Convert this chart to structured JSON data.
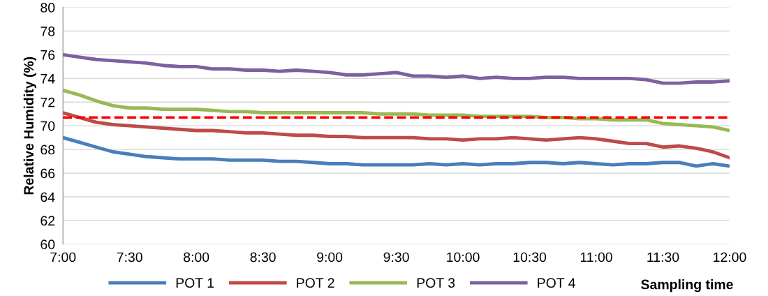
{
  "chart_data": {
    "type": "line",
    "ylabel": "Relative Humidity (%)",
    "xlabel": "Sampling time",
    "x": [
      7.0,
      7.125,
      7.25,
      7.375,
      7.5,
      7.625,
      7.75,
      7.875,
      8.0,
      8.125,
      8.25,
      8.375,
      8.5,
      8.625,
      8.75,
      8.875,
      9.0,
      9.125,
      9.25,
      9.375,
      9.5,
      9.625,
      9.75,
      9.875,
      10.0,
      10.125,
      10.25,
      10.375,
      10.5,
      10.625,
      10.75,
      10.875,
      11.0,
      11.125,
      11.25,
      11.375,
      11.5,
      11.625,
      11.75,
      11.875,
      12.0
    ],
    "series": [
      {
        "name": "POT 1",
        "color": "#4a7ebb",
        "values": [
          69.0,
          68.6,
          68.2,
          67.8,
          67.6,
          67.4,
          67.3,
          67.2,
          67.2,
          67.2,
          67.1,
          67.1,
          67.1,
          67.0,
          67.0,
          66.9,
          66.8,
          66.8,
          66.7,
          66.7,
          66.7,
          66.7,
          66.8,
          66.7,
          66.8,
          66.7,
          66.8,
          66.8,
          66.9,
          66.9,
          66.8,
          66.9,
          66.8,
          66.7,
          66.8,
          66.8,
          66.9,
          66.9,
          66.6,
          66.8,
          66.6
        ]
      },
      {
        "name": "POT 2",
        "color": "#be4b48",
        "values": [
          71.1,
          70.7,
          70.3,
          70.1,
          70.0,
          69.9,
          69.8,
          69.7,
          69.6,
          69.6,
          69.5,
          69.4,
          69.4,
          69.3,
          69.2,
          69.2,
          69.1,
          69.1,
          69.0,
          69.0,
          69.0,
          69.0,
          68.9,
          68.9,
          68.8,
          68.9,
          68.9,
          69.0,
          68.9,
          68.8,
          68.9,
          69.0,
          68.9,
          68.7,
          68.5,
          68.5,
          68.2,
          68.3,
          68.1,
          67.8,
          67.3
        ]
      },
      {
        "name": "POT 3",
        "color": "#98b954",
        "values": [
          73.0,
          72.6,
          72.1,
          71.7,
          71.5,
          71.5,
          71.4,
          71.4,
          71.4,
          71.3,
          71.2,
          71.2,
          71.1,
          71.1,
          71.1,
          71.1,
          71.1,
          71.1,
          71.1,
          71.0,
          71.0,
          71.0,
          70.9,
          70.9,
          70.9,
          70.8,
          70.8,
          70.8,
          70.8,
          70.7,
          70.7,
          70.6,
          70.6,
          70.5,
          70.5,
          70.5,
          70.2,
          70.1,
          70.0,
          69.9,
          69.6
        ]
      },
      {
        "name": "POT 4",
        "color": "#7d60a0",
        "values": [
          76.0,
          75.8,
          75.6,
          75.5,
          75.4,
          75.3,
          75.1,
          75.0,
          75.0,
          74.8,
          74.8,
          74.7,
          74.7,
          74.6,
          74.7,
          74.6,
          74.5,
          74.3,
          74.3,
          74.4,
          74.5,
          74.2,
          74.2,
          74.1,
          74.2,
          74.0,
          74.1,
          74.0,
          74.0,
          74.1,
          74.1,
          74.0,
          74.0,
          74.0,
          74.0,
          73.9,
          73.6,
          73.6,
          73.7,
          73.7,
          73.8
        ]
      }
    ],
    "xlim": [
      7.0,
      12.0
    ],
    "xticks": [
      {
        "value": 7.0,
        "label": "7:00"
      },
      {
        "value": 7.5,
        "label": "7:30"
      },
      {
        "value": 8.0,
        "label": "8:00"
      },
      {
        "value": 8.5,
        "label": "8:30"
      },
      {
        "value": 9.0,
        "label": "9:00"
      },
      {
        "value": 9.5,
        "label": "9:30"
      },
      {
        "value": 10.0,
        "label": "10:00"
      },
      {
        "value": 10.5,
        "label": "10:30"
      },
      {
        "value": 11.0,
        "label": "11:00"
      },
      {
        "value": 11.5,
        "label": "11:30"
      },
      {
        "value": 12.0,
        "label": "12:00"
      }
    ],
    "ylim": [
      60,
      80
    ],
    "yticks": [
      60,
      62,
      64,
      66,
      68,
      70,
      72,
      74,
      76,
      78,
      80
    ],
    "ref_lines": [
      {
        "axis": "y",
        "value": 70.7,
        "color": "#ff0000",
        "line_style": "dashed"
      }
    ],
    "grid": "y",
    "legend": "bottom",
    "marker": "none",
    "line_style": "solid"
  }
}
